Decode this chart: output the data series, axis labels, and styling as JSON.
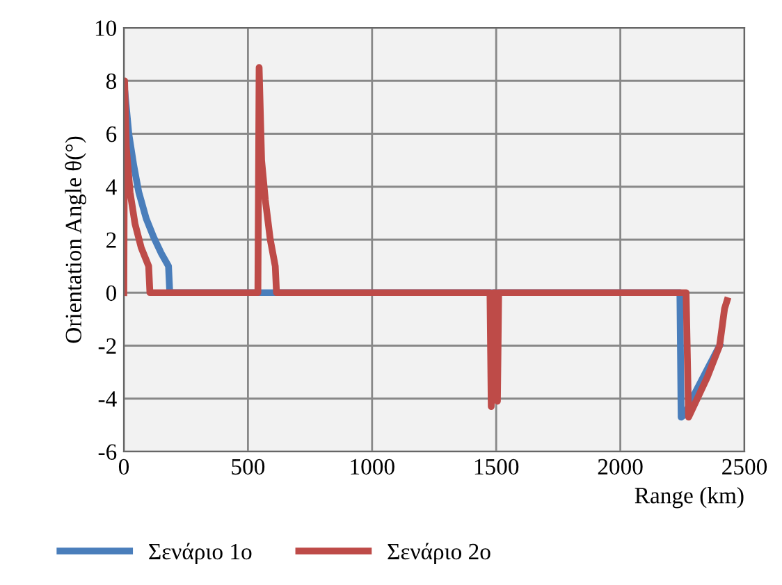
{
  "chart_data": {
    "type": "line",
    "xlabel": "Range (km)",
    "ylabel": "Orientation Angle θ(°)",
    "xlim": [
      0,
      2500
    ],
    "xticks": [
      0,
      500,
      1000,
      1500,
      2000,
      2500
    ],
    "ylim": [
      -6,
      10
    ],
    "yticks": [
      -6,
      -4,
      -2,
      0,
      2,
      4,
      6,
      8,
      10
    ],
    "grid": true,
    "legend": "bottom",
    "marker": "none",
    "line_style": "solid",
    "series": [
      {
        "name": "Σενάριο 1ο",
        "color": "#4a7ebb",
        "x": [
          5,
          20,
          40,
          60,
          90,
          120,
          150,
          180,
          185,
          2240,
          2245,
          2260,
          2300,
          2350,
          2400
        ],
        "values": [
          7.5,
          6.0,
          4.8,
          3.8,
          2.8,
          2.1,
          1.5,
          1.0,
          0,
          0,
          -4.7,
          -4.6,
          -3.8,
          -2.9,
          -2.0
        ]
      },
      {
        "name": "Σενάριο 2ο",
        "color": "#be4b48",
        "x": [
          0,
          3,
          10,
          25,
          45,
          70,
          100,
          105,
          540,
          545,
          555,
          570,
          590,
          610,
          615,
          1475,
          1480,
          1490,
          1500,
          1505,
          1510,
          2265,
          2275,
          2300,
          2350,
          2400,
          2410,
          2420,
          2430
        ],
        "values": [
          0,
          8.0,
          5.5,
          3.8,
          2.6,
          1.7,
          1.0,
          0,
          0,
          8.5,
          5.0,
          3.5,
          2.0,
          1.0,
          0,
          0,
          -4.3,
          0,
          0,
          -4.1,
          0,
          0,
          -4.7,
          -4.2,
          -3.2,
          -2.0,
          -1.3,
          -0.6,
          -0.3
        ]
      }
    ]
  }
}
